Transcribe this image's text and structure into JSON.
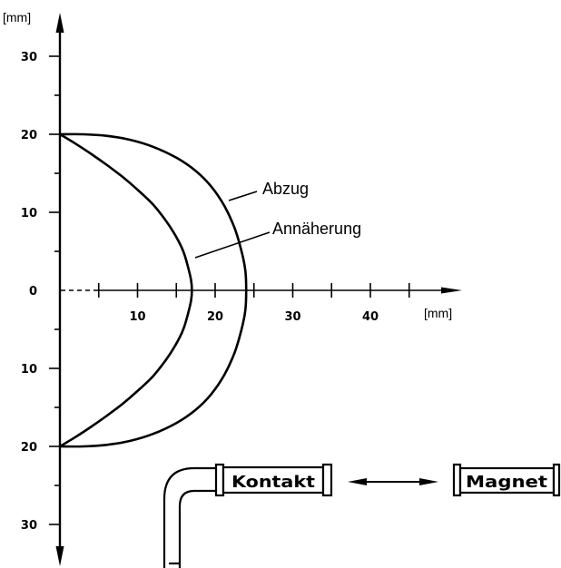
{
  "chart_data": {
    "type": "line",
    "xlabel": "[mm]",
    "ylabel": "[mm]",
    "xlim": [
      0,
      50
    ],
    "ylim": [
      -35,
      35
    ],
    "grid": false,
    "legend": "none",
    "x_ticks": [
      5,
      10,
      15,
      20,
      25,
      30,
      35,
      40,
      45
    ],
    "x_tick_labels": [
      {
        "value": 10,
        "text": "10"
      },
      {
        "value": 20,
        "text": "20"
      },
      {
        "value": 30,
        "text": "30"
      },
      {
        "value": 40,
        "text": "40"
      }
    ],
    "y_ticks": [
      30,
      25,
      20,
      15,
      10,
      5,
      -5,
      -10,
      -15,
      -20,
      -25,
      -30
    ],
    "y_tick_labels": [
      {
        "value": 30,
        "text": "30"
      },
      {
        "value": 20,
        "text": "20"
      },
      {
        "value": 10,
        "text": "10"
      },
      {
        "value": 0,
        "text": "0"
      },
      {
        "value": -10,
        "text": "10"
      },
      {
        "value": -20,
        "text": "20"
      },
      {
        "value": -30,
        "text": "30"
      }
    ],
    "series": [
      {
        "name": "Abzug",
        "color": "#000000",
        "points": [
          [
            0,
            20
          ],
          [
            3,
            20
          ],
          [
            6,
            19.8
          ],
          [
            9,
            19.3
          ],
          [
            12,
            18.4
          ],
          [
            15,
            17
          ],
          [
            17.5,
            15.3
          ],
          [
            19.5,
            13.3
          ],
          [
            21.2,
            10.8
          ],
          [
            22.5,
            8
          ],
          [
            23.4,
            5
          ],
          [
            23.9,
            2.5
          ],
          [
            24,
            0
          ],
          [
            23.9,
            -2.5
          ],
          [
            23.4,
            -5
          ],
          [
            22.5,
            -8
          ],
          [
            21.2,
            -10.8
          ],
          [
            19.5,
            -13.3
          ],
          [
            17.5,
            -15.3
          ],
          [
            15,
            -17
          ],
          [
            12,
            -18.4
          ],
          [
            9,
            -19.3
          ],
          [
            6,
            -19.8
          ],
          [
            3,
            -20
          ],
          [
            0,
            -20
          ]
        ]
      },
      {
        "name": "Annäherung",
        "color": "#000000",
        "points": [
          [
            0,
            20
          ],
          [
            2,
            18.8
          ],
          [
            4,
            17.5
          ],
          [
            6,
            16.1
          ],
          [
            8,
            14.6
          ],
          [
            10,
            12.9
          ],
          [
            12,
            11
          ],
          [
            13.6,
            9
          ],
          [
            14.9,
            7
          ],
          [
            15.9,
            5
          ],
          [
            16.5,
            3
          ],
          [
            16.9,
            1.3
          ],
          [
            17,
            0
          ],
          [
            16.9,
            -1.3
          ],
          [
            16.5,
            -3
          ],
          [
            15.9,
            -5
          ],
          [
            14.9,
            -7
          ],
          [
            13.6,
            -9
          ],
          [
            12,
            -11
          ],
          [
            10,
            -12.9
          ],
          [
            8,
            -14.6
          ],
          [
            6,
            -16.1
          ],
          [
            4,
            -17.5
          ],
          [
            2,
            -18.8
          ],
          [
            0,
            -20
          ]
        ]
      }
    ]
  },
  "schematic": {
    "contact_label": "Kontakt",
    "magnet_label": "Magnet"
  },
  "colors": {
    "ink": "#000000",
    "background": "#ffffff"
  }
}
